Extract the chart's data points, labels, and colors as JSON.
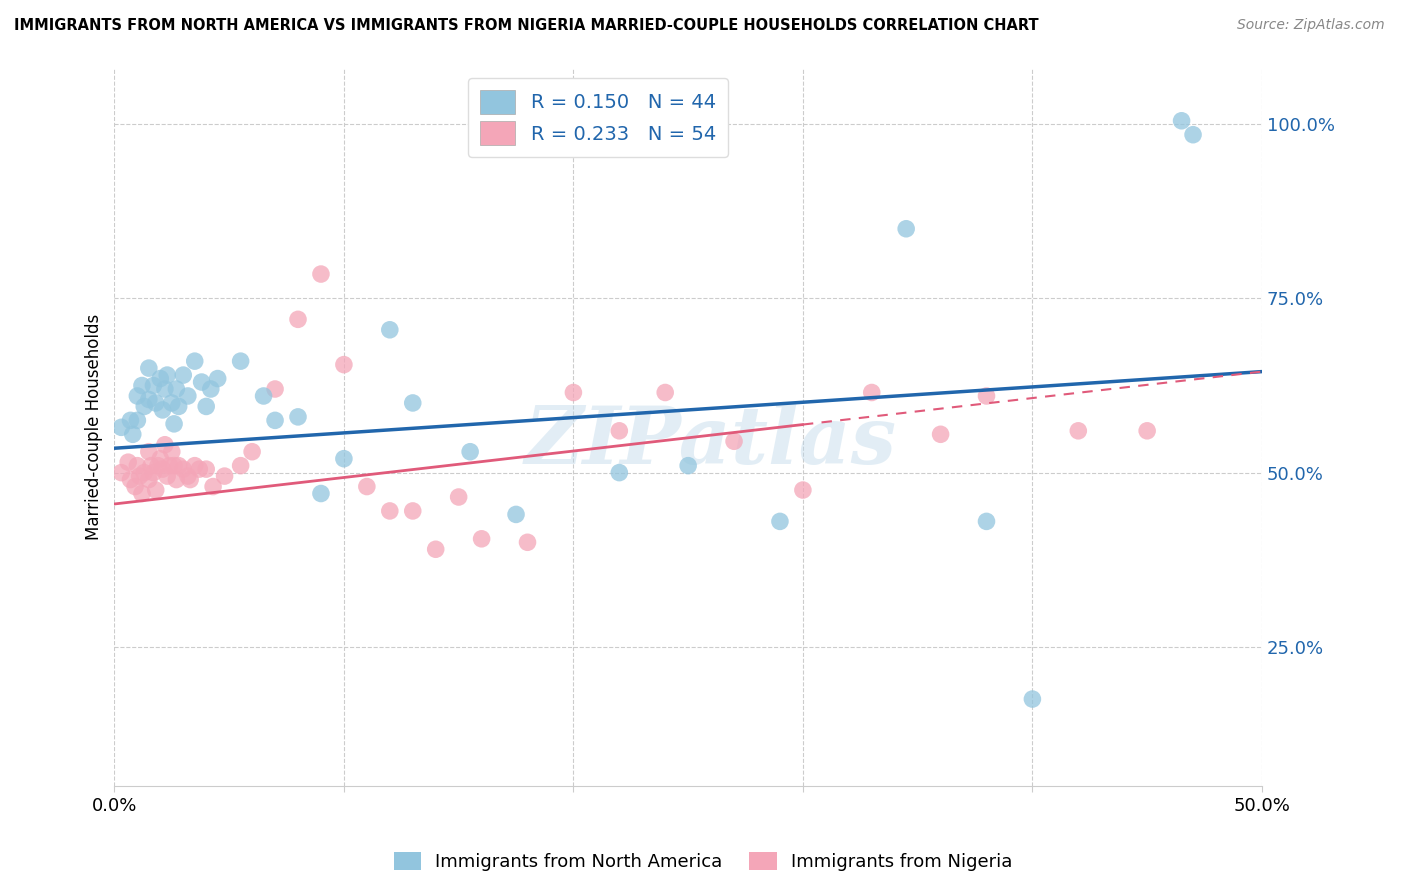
{
  "title": "IMMIGRANTS FROM NORTH AMERICA VS IMMIGRANTS FROM NIGERIA MARRIED-COUPLE HOUSEHOLDS CORRELATION CHART",
  "source": "Source: ZipAtlas.com",
  "ylabel": "Married-couple Households",
  "y_ticks": [
    "25.0%",
    "50.0%",
    "75.0%",
    "100.0%"
  ],
  "y_tick_vals": [
    0.25,
    0.5,
    0.75,
    1.0
  ],
  "x_range": [
    0.0,
    0.5
  ],
  "y_range": [
    0.05,
    1.08
  ],
  "blue_color": "#92c5de",
  "pink_color": "#f4a6b8",
  "blue_line_color": "#2166ac",
  "pink_line_color": "#e05a7a",
  "legend_text_color": "#2166ac",
  "watermark": "ZIPatlas",
  "R_blue": 0.15,
  "N_blue": 44,
  "R_pink": 0.233,
  "N_pink": 54,
  "blue_intercept": 0.535,
  "blue_slope": 0.22,
  "pink_intercept": 0.455,
  "pink_slope": 0.38,
  "blue_x": [
    0.003,
    0.007,
    0.008,
    0.01,
    0.01,
    0.012,
    0.013,
    0.015,
    0.015,
    0.017,
    0.018,
    0.02,
    0.021,
    0.022,
    0.023,
    0.025,
    0.026,
    0.027,
    0.028,
    0.03,
    0.032,
    0.035,
    0.038,
    0.04,
    0.042,
    0.045,
    0.055,
    0.065,
    0.07,
    0.08,
    0.09,
    0.1,
    0.12,
    0.13,
    0.155,
    0.175,
    0.22,
    0.25,
    0.29,
    0.345,
    0.38,
    0.4,
    0.465,
    0.47
  ],
  "blue_y": [
    0.565,
    0.575,
    0.555,
    0.61,
    0.575,
    0.625,
    0.595,
    0.65,
    0.605,
    0.625,
    0.6,
    0.635,
    0.59,
    0.62,
    0.64,
    0.6,
    0.57,
    0.62,
    0.595,
    0.64,
    0.61,
    0.66,
    0.63,
    0.595,
    0.62,
    0.635,
    0.66,
    0.61,
    0.575,
    0.58,
    0.47,
    0.52,
    0.705,
    0.6,
    0.53,
    0.44,
    0.5,
    0.51,
    0.43,
    0.85,
    0.43,
    0.175,
    1.005,
    0.985
  ],
  "pink_x": [
    0.003,
    0.006,
    0.007,
    0.009,
    0.01,
    0.011,
    0.012,
    0.013,
    0.015,
    0.015,
    0.016,
    0.017,
    0.018,
    0.019,
    0.02,
    0.021,
    0.022,
    0.023,
    0.024,
    0.025,
    0.026,
    0.027,
    0.028,
    0.03,
    0.032,
    0.033,
    0.035,
    0.037,
    0.04,
    0.043,
    0.048,
    0.055,
    0.06,
    0.07,
    0.08,
    0.09,
    0.1,
    0.11,
    0.12,
    0.13,
    0.14,
    0.15,
    0.16,
    0.18,
    0.2,
    0.22,
    0.24,
    0.27,
    0.3,
    0.33,
    0.36,
    0.38,
    0.42,
    0.45
  ],
  "pink_y": [
    0.5,
    0.515,
    0.49,
    0.48,
    0.51,
    0.495,
    0.47,
    0.5,
    0.53,
    0.49,
    0.51,
    0.5,
    0.475,
    0.51,
    0.52,
    0.505,
    0.54,
    0.495,
    0.51,
    0.53,
    0.51,
    0.49,
    0.51,
    0.505,
    0.495,
    0.49,
    0.51,
    0.505,
    0.505,
    0.48,
    0.495,
    0.51,
    0.53,
    0.62,
    0.72,
    0.785,
    0.655,
    0.48,
    0.445,
    0.445,
    0.39,
    0.465,
    0.405,
    0.4,
    0.615,
    0.56,
    0.615,
    0.545,
    0.475,
    0.615,
    0.555,
    0.61,
    0.56,
    0.56
  ]
}
